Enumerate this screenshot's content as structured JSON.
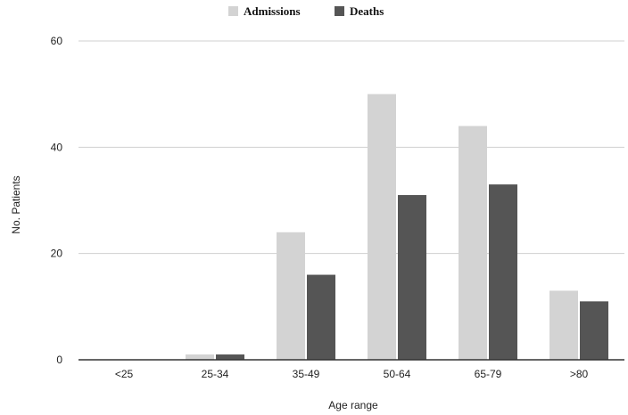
{
  "chart_data": {
    "type": "bar",
    "title": "",
    "xlabel": "Age range",
    "ylabel": "No. Patients",
    "categories": [
      "<25",
      "25-34",
      "35-49",
      "50-64",
      "65-79",
      ">80"
    ],
    "series": [
      {
        "name": "Admissions",
        "values": [
          0,
          1,
          24,
          50,
          44,
          13
        ],
        "color": "#d3d3d3"
      },
      {
        "name": "Deaths",
        "values": [
          0,
          1,
          16,
          31,
          33,
          11
        ],
        "color": "#555555"
      }
    ],
    "ylim": [
      0,
      60
    ],
    "yticks": [
      0,
      20,
      40,
      60
    ],
    "grid": true,
    "legend_position": "top-center"
  }
}
